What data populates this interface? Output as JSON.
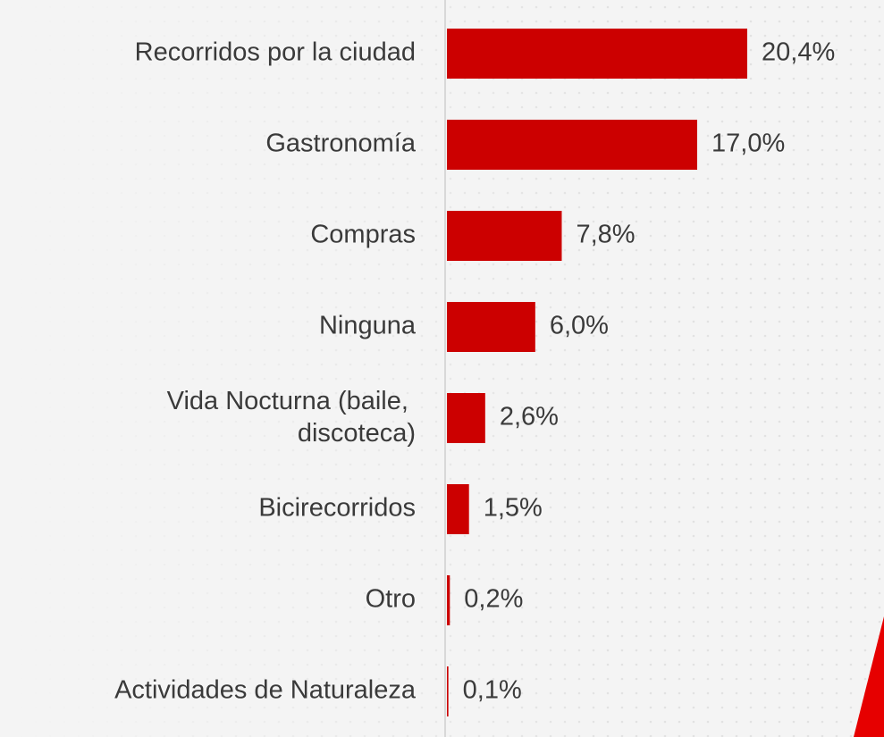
{
  "chart_data": {
    "type": "bar",
    "orientation": "horizontal",
    "categories": [
      "Recorridos por la ciudad",
      "Gastronomía",
      "Compras",
      "Ninguna",
      "Vida Nocturna (baile, discoteca)",
      "Bicirecorridos",
      "Otro",
      "Actividades de Naturaleza"
    ],
    "values": [
      20.4,
      17.0,
      7.8,
      6.0,
      2.6,
      1.5,
      0.2,
      0.1
    ],
    "value_labels": [
      "20,4%",
      "17,0%",
      "7,8%",
      "6,0%",
      "2,6%",
      "1,5%",
      "0,2%",
      "0,1%"
    ],
    "color": "#cc0000"
  }
}
